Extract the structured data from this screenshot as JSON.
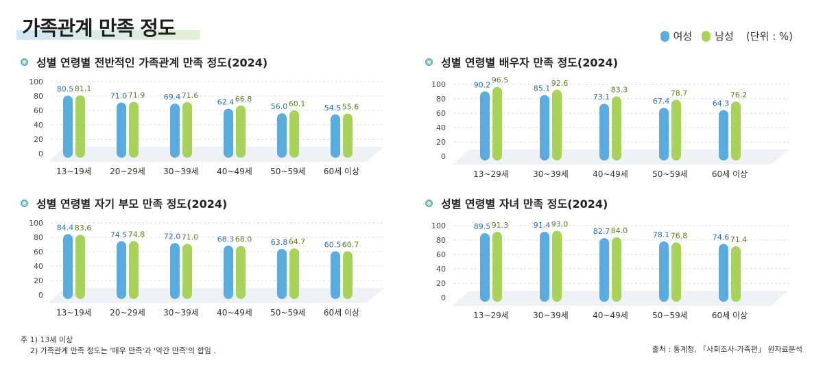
{
  "page_title": "가족관계 만족 정도",
  "legend": {
    "female": "여성",
    "male": "남성",
    "unit": "(단위 : %)"
  },
  "colors": {
    "female": "#5aace0",
    "male": "#a8d25a",
    "female_label": "#2e6ea6",
    "male_label": "#5b7d1e",
    "floor": "#eef1f5",
    "grid": "#d6d9de"
  },
  "notes": {
    "line1": "주 1) 13세 이상",
    "line2": "2) 가족관계 만족 정도는 '매우 만족'과 '약간 만족'의 합임 ."
  },
  "source": "출처 : 통계청, 「사회조사-가족편」 원자료분석",
  "chart_data": [
    {
      "type": "bar",
      "title": "성별 연령별 전반적인 가족관계 만족 정도(2024)",
      "categories": [
        "13~19세",
        "20~29세",
        "30~39세",
        "40~49세",
        "50~59세",
        "60세 이상"
      ],
      "series": [
        {
          "name": "여성",
          "values": [
            80.5,
            71.0,
            69.4,
            62.4,
            56.0,
            54.5
          ],
          "labels": [
            "80.5",
            "71.0",
            "69.4",
            "62.4",
            "56.0",
            "54.5"
          ]
        },
        {
          "name": "남성",
          "values": [
            81.1,
            71.9,
            71.6,
            66.8,
            60.1,
            55.6
          ],
          "labels": [
            "81.1",
            "71.9",
            "71.6",
            "66.8",
            "60.1",
            "55.6"
          ]
        }
      ],
      "yticks": [
        "0",
        "20",
        "40",
        "60",
        "80",
        "100"
      ],
      "ylim": [
        0,
        100
      ]
    },
    {
      "type": "bar",
      "title": "성별 연령별 배우자 만족 정도(2024)",
      "categories": [
        "13~29세",
        "30~39세",
        "40~49세",
        "50~59세",
        "60세 이상"
      ],
      "series": [
        {
          "name": "여성",
          "values": [
            90.2,
            85.1,
            73.1,
            67.4,
            64.3
          ],
          "labels": [
            "90.2",
            "85.1",
            "73.1",
            "67.4",
            "64.3"
          ]
        },
        {
          "name": "남성",
          "values": [
            96.5,
            92.6,
            83.3,
            78.7,
            76.2
          ],
          "labels": [
            "96.5",
            "92.6",
            "83.3",
            "78.7",
            "76.2"
          ]
        }
      ],
      "yticks": [
        "0",
        "20",
        "40",
        "60",
        "80",
        "100"
      ],
      "ylim": [
        0,
        100
      ]
    },
    {
      "type": "bar",
      "title": "성별 연령별 자기 부모 만족 정도(2024)",
      "categories": [
        "13~19세",
        "20~29세",
        "30~39세",
        "40~49세",
        "50~59세",
        "60세 이상"
      ],
      "series": [
        {
          "name": "여성",
          "values": [
            84.4,
            74.5,
            72.0,
            68.3,
            63.8,
            60.5
          ],
          "labels": [
            "84.4",
            "74.5",
            "72.0",
            "68.3",
            "63.8",
            "60.5"
          ]
        },
        {
          "name": "남성",
          "values": [
            83.6,
            74.8,
            71.0,
            68.0,
            64.7,
            60.7
          ],
          "labels": [
            "83.6",
            "74.8",
            "71.0",
            "68.0",
            "64.7",
            "60.7"
          ]
        }
      ],
      "yticks": [
        "0",
        "20",
        "40",
        "60",
        "80",
        "100"
      ],
      "ylim": [
        0,
        100
      ]
    },
    {
      "type": "bar",
      "title": "성별 연령별 자녀 만족 정도(2024)",
      "categories": [
        "13~29세",
        "30~39세",
        "40~49세",
        "50~59세",
        "60세 이상"
      ],
      "series": [
        {
          "name": "여성",
          "values": [
            89.5,
            91.4,
            82.7,
            78.1,
            74.6
          ],
          "labels": [
            "89.5",
            "91.4",
            "82.7",
            "78.1",
            "74.6"
          ]
        },
        {
          "name": "남성",
          "values": [
            91.3,
            93.0,
            84.0,
            76.8,
            71.4
          ],
          "labels": [
            "91.3",
            "93.0",
            "84.0",
            "76.8",
            "71.4"
          ]
        }
      ],
      "yticks": [
        "0",
        "20",
        "40",
        "60",
        "80",
        "100"
      ],
      "ylim": [
        0,
        100
      ]
    }
  ]
}
